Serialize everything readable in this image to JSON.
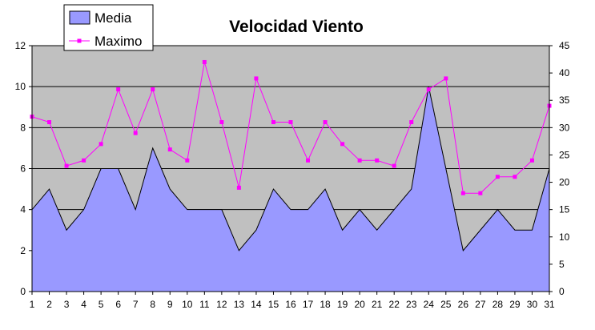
{
  "chart_data": {
    "type": "area",
    "title": "Velocidad Viento",
    "xlabel": "",
    "ylabel": "",
    "y2label": "",
    "categories": [
      "1",
      "2",
      "3",
      "4",
      "5",
      "6",
      "7",
      "8",
      "9",
      "10",
      "11",
      "12",
      "13",
      "14",
      "15",
      "16",
      "17",
      "18",
      "19",
      "20",
      "21",
      "22",
      "23",
      "24",
      "25",
      "26",
      "27",
      "28",
      "29",
      "30",
      "31"
    ],
    "ylim": [
      0,
      12
    ],
    "y2lim": [
      0,
      45
    ],
    "yticks": [
      0,
      2,
      4,
      6,
      8,
      10,
      12
    ],
    "y2ticks": [
      0,
      5,
      10,
      15,
      20,
      25,
      30,
      35,
      40,
      45
    ],
    "grid": true,
    "legend": "top-left",
    "series": [
      {
        "name": "Media",
        "type": "area",
        "axis": "left",
        "color": "#9999ff",
        "values": [
          4,
          5,
          3,
          4,
          6,
          6,
          4,
          7,
          5,
          4,
          4,
          4,
          2,
          3,
          5,
          4,
          4,
          5,
          3,
          4,
          3,
          4,
          5,
          10,
          6,
          2,
          3,
          4,
          3,
          3,
          6
        ]
      },
      {
        "name": "Maximo",
        "type": "line",
        "axis": "right",
        "color": "#ff00ff",
        "marker": "square",
        "values": [
          32,
          31,
          23,
          24,
          27,
          37,
          29,
          37,
          26,
          24,
          42,
          31,
          19,
          39,
          31,
          31,
          24,
          31,
          27,
          24,
          24,
          23,
          31,
          37,
          39,
          18,
          18,
          21,
          21,
          24,
          34
        ]
      }
    ],
    "colors": {
      "plot_background": "#c0c0c0",
      "gridline": "#000000"
    }
  }
}
